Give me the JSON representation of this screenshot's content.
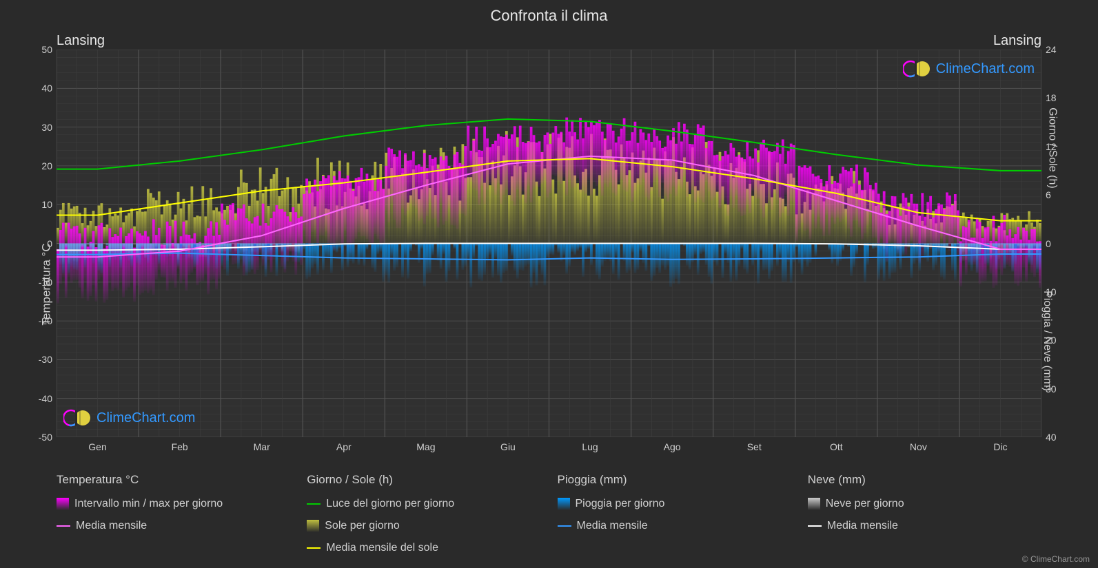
{
  "title": "Confronta il clima",
  "city_left": "Lansing",
  "city_right": "Lansing",
  "watermark_text": "ClimeChart.com",
  "copyright": "© ClimeChart.com",
  "y_axis_left": {
    "label": "Temperatura °C",
    "ticks": [
      50,
      40,
      30,
      20,
      10,
      0,
      -10,
      -20,
      -30,
      -40,
      -50
    ],
    "min": -50,
    "max": 50
  },
  "y_axis_right_top": {
    "label": "Giorno / Sole (h)",
    "ticks": [
      24,
      18,
      12,
      6,
      0
    ],
    "min": 0,
    "max": 24
  },
  "y_axis_right_bottom": {
    "label": "Pioggia / Neve (mm)",
    "ticks": [
      10,
      20,
      30,
      40
    ],
    "min": 0,
    "max": 40
  },
  "x_axis": {
    "months": [
      "Gen",
      "Feb",
      "Mar",
      "Apr",
      "Mag",
      "Giu",
      "Lug",
      "Ago",
      "Set",
      "Ott",
      "Nov",
      "Dic"
    ]
  },
  "colors": {
    "background": "#2a2a2a",
    "grid_major": "#555555",
    "grid_minor": "#404040",
    "text": "#d0d0d0",
    "temp_range_fill": "#ff00ff",
    "temp_mean_line": "#ff66ff",
    "daylight_line": "#00cc00",
    "sun_fill": "#c0c040",
    "sun_mean_line": "#ffff00",
    "rain_fill": "#0099ff",
    "rain_mean_line": "#3399ff",
    "snow_fill": "#cccccc",
    "snow_mean_line": "#ffffff",
    "watermark_blue": "#3399ff"
  },
  "line_widths": {
    "mean_line": 2,
    "grid": 0.5
  },
  "series": {
    "daylight": [
      9.2,
      10.2,
      11.6,
      13.3,
      14.6,
      15.4,
      15.1,
      13.9,
      12.5,
      11.0,
      9.7,
      9.0
    ],
    "sun_mean": [
      3.5,
      5.0,
      6.5,
      7.5,
      8.8,
      10.2,
      10.5,
      9.5,
      8.0,
      6.2,
      3.8,
      2.8
    ],
    "temp_mean": [
      -3.5,
      -2.0,
      2.0,
      9.0,
      15.0,
      20.5,
      22.5,
      21.5,
      17.5,
      11.0,
      4.5,
      -1.5
    ],
    "temp_min": [
      -12,
      -10,
      -5,
      1,
      7,
      13,
      15,
      14,
      10,
      4,
      -2,
      -8
    ],
    "temp_max": [
      2,
      3,
      8,
      16,
      22,
      27,
      29,
      28,
      24,
      17,
      10,
      4
    ],
    "rain_mean": [
      2.3,
      2.0,
      2.5,
      3.0,
      3.2,
      3.4,
      3.0,
      3.3,
      3.2,
      3.0,
      2.8,
      2.2
    ],
    "snow_mean": [
      1.4,
      1.2,
      0.7,
      0.1,
      0,
      0,
      0,
      0,
      0,
      0.1,
      0.5,
      1.2
    ]
  },
  "legend": {
    "groups": [
      {
        "title": "Temperatura °C",
        "items": [
          {
            "type": "swatch",
            "color": "#ff00ff",
            "gradient": true,
            "label": "Intervallo min / max per giorno"
          },
          {
            "type": "line",
            "color": "#ff66ff",
            "label": "Media mensile"
          }
        ]
      },
      {
        "title": "Giorno / Sole (h)",
        "items": [
          {
            "type": "line",
            "color": "#00cc00",
            "label": "Luce del giorno per giorno"
          },
          {
            "type": "swatch",
            "color": "#c0c040",
            "gradient": true,
            "label": "Sole per giorno"
          },
          {
            "type": "line",
            "color": "#ffff00",
            "label": "Media mensile del sole"
          }
        ]
      },
      {
        "title": "Pioggia (mm)",
        "items": [
          {
            "type": "swatch",
            "color": "#0099ff",
            "gradient": true,
            "label": "Pioggia per giorno"
          },
          {
            "type": "line",
            "color": "#3399ff",
            "label": "Media mensile"
          }
        ]
      },
      {
        "title": "Neve (mm)",
        "items": [
          {
            "type": "swatch",
            "color": "#cccccc",
            "gradient": true,
            "label": "Neve per giorno"
          },
          {
            "type": "line",
            "color": "#ffffff",
            "label": "Media mensile"
          }
        ]
      }
    ]
  }
}
